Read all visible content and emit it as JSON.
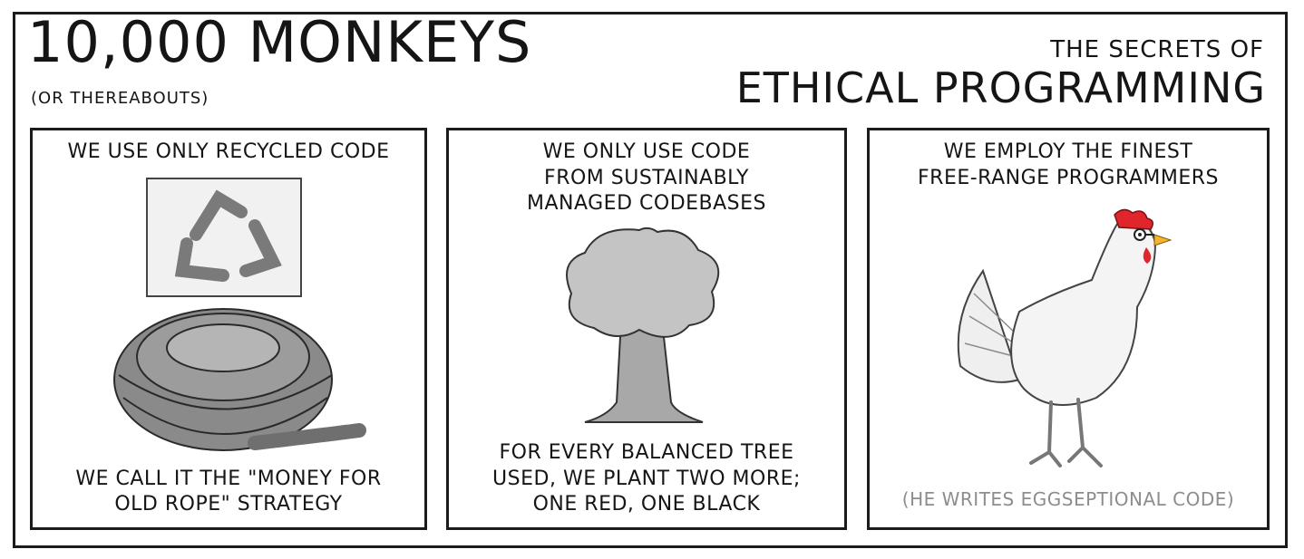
{
  "header": {
    "series_title": "10,000 MONKEYS",
    "series_subtitle": "(OR THEREABOUTS)",
    "topic_prefix": "THE SECRETS OF",
    "topic_title": "ETHICAL PROGRAMMING"
  },
  "panels": [
    {
      "top_caption": "WE USE ONLY RECYCLED CODE",
      "bottom_caption": "WE CALL IT THE \"MONEY FOR\nOLD ROPE\" STRATEGY",
      "art": "recycle-sign-and-rope-coil"
    },
    {
      "top_caption": "WE ONLY USE CODE\nFROM SUSTAINABLY\nMANAGED CODEBASES",
      "bottom_caption": "FOR EVERY BALANCED TREE\nUSED, WE PLANT TWO MORE;\nONE RED, ONE BLACK",
      "art": "tree"
    },
    {
      "top_caption": "WE EMPLOY THE FINEST\nFREE-RANGE PROGRAMMERS",
      "bottom_caption": "(HE WRITES EGGSEPTIONAL CODE)",
      "art": "chicken-with-glasses"
    }
  ],
  "colors": {
    "ink": "#1b1b1b",
    "muted_caption": "#8d8d8d",
    "comb": "#e0262b",
    "beak": "#f2b530"
  }
}
